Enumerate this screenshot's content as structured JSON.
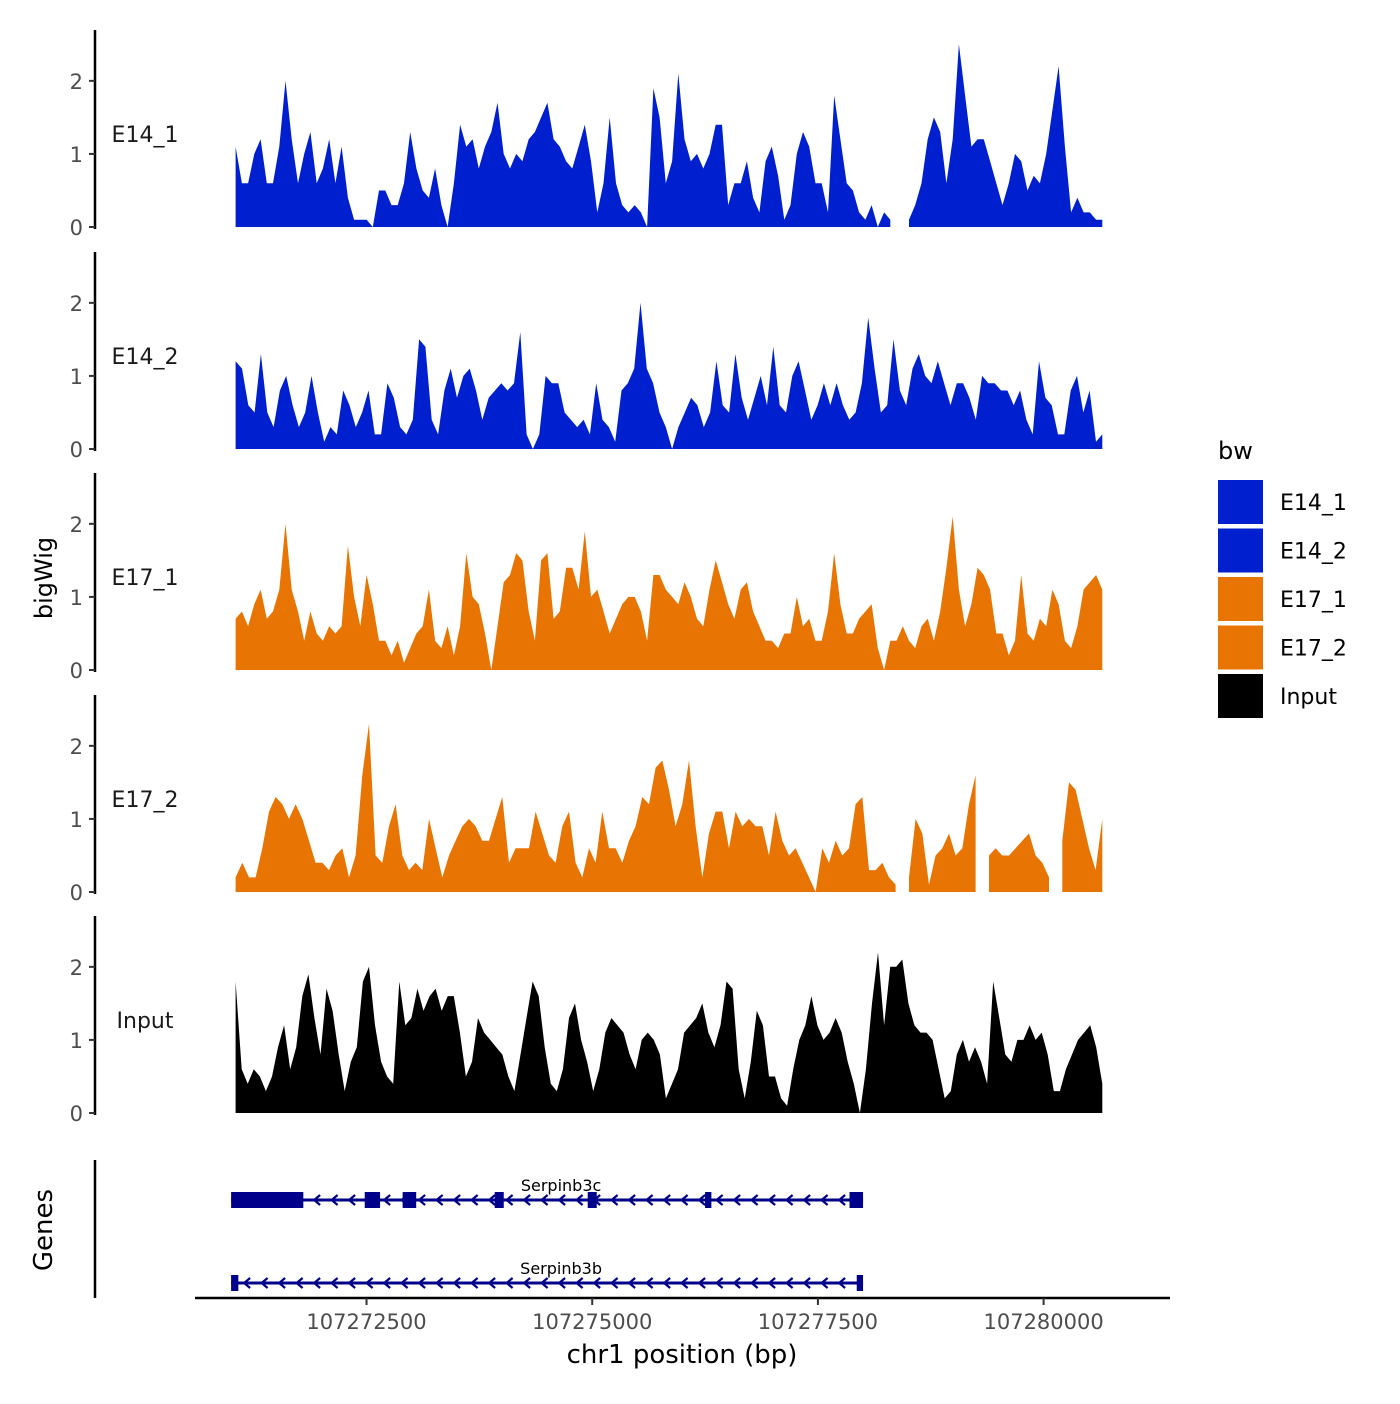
{
  "chart_data": {
    "type": "area",
    "ylabel": "bigWig",
    "xlabel": "chr1 position (bp)",
    "genes_label": "Genes",
    "x_range": [
      107271050,
      107280650
    ],
    "xlim": [
      107270600,
      107281400
    ],
    "x_ticks": [
      107272500,
      107275000,
      107277500,
      107280000
    ],
    "x_tick_labels": [
      "107272500",
      "107275000",
      "107277500",
      "107280000"
    ],
    "ylim": [
      0,
      2.6
    ],
    "y_ticks": [
      0,
      1,
      2
    ],
    "y_tick_labels": [
      "0",
      "1",
      "2"
    ],
    "legend": {
      "title": "bw",
      "entries": [
        {
          "label": "E14_1",
          "color": "#0020CF"
        },
        {
          "label": "E14_2",
          "color": "#0020CF"
        },
        {
          "label": "E17_1",
          "color": "#E87404"
        },
        {
          "label": "E17_2",
          "color": "#E87404"
        },
        {
          "label": "Input",
          "color": "#000000"
        }
      ]
    },
    "series": [
      {
        "name": "E14_1",
        "color": "#0020CF",
        "values": [
          1.1,
          0.6,
          0.6,
          1.0,
          1.2,
          0.6,
          0.6,
          1.1,
          2.0,
          1.2,
          0.6,
          1.0,
          1.3,
          0.6,
          0.8,
          1.2,
          0.6,
          1.1,
          0.4,
          0.1,
          0.1,
          0.1,
          0.0,
          0.5,
          0.5,
          0.3,
          0.3,
          0.6,
          1.3,
          0.8,
          0.5,
          0.4,
          0.8,
          0.3,
          0.0,
          0.6,
          1.4,
          1.1,
          1.2,
          0.8,
          1.1,
          1.3,
          1.7,
          1.0,
          0.8,
          1.0,
          0.9,
          1.2,
          1.3,
          1.5,
          1.7,
          1.2,
          1.1,
          0.9,
          0.8,
          1.1,
          1.4,
          0.9,
          0.2,
          0.6,
          1.5,
          0.6,
          0.3,
          0.2,
          0.3,
          0.2,
          0.0,
          1.9,
          1.5,
          0.6,
          0.9,
          2.1,
          1.2,
          0.9,
          1.0,
          0.8,
          1.0,
          1.4,
          1.4,
          0.3,
          0.6,
          0.6,
          0.9,
          0.4,
          0.2,
          0.9,
          1.1,
          0.7,
          0.1,
          0.3,
          1.0,
          1.3,
          1.1,
          0.6,
          0.6,
          0.2,
          1.8,
          1.2,
          0.6,
          0.5,
          0.2,
          0.1,
          0.3,
          0.0,
          0.2,
          0.1,
          null,
          null,
          0.1,
          0.3,
          0.6,
          1.2,
          1.5,
          1.3,
          0.6,
          1.2,
          2.5,
          1.8,
          1.1,
          1.2,
          1.2,
          0.9,
          0.6,
          0.3,
          0.6,
          1.0,
          0.9,
          0.5,
          0.7,
          0.6,
          1.0,
          1.6,
          2.2,
          1.1,
          0.2,
          0.4,
          0.2,
          0.2,
          0.1,
          0.1
        ]
      },
      {
        "name": "E14_2",
        "color": "#0020CF",
        "values": [
          1.2,
          1.1,
          0.6,
          0.5,
          1.3,
          0.5,
          0.3,
          0.8,
          1.0,
          0.6,
          0.3,
          0.5,
          1.0,
          0.5,
          0.1,
          0.3,
          0.2,
          0.8,
          0.6,
          0.3,
          0.5,
          0.8,
          0.2,
          0.2,
          0.9,
          0.7,
          0.3,
          0.2,
          0.4,
          1.5,
          1.4,
          0.4,
          0.2,
          0.8,
          1.1,
          0.7,
          1.0,
          1.1,
          0.8,
          0.4,
          0.7,
          0.8,
          0.9,
          0.8,
          0.9,
          1.6,
          0.2,
          0.0,
          0.2,
          1.0,
          0.9,
          0.9,
          0.5,
          0.4,
          0.3,
          0.4,
          0.2,
          0.9,
          0.4,
          0.3,
          0.1,
          0.8,
          0.9,
          1.1,
          2.0,
          1.1,
          0.9,
          0.5,
          0.3,
          0.0,
          0.3,
          0.5,
          0.7,
          0.6,
          0.3,
          0.5,
          1.2,
          0.6,
          0.5,
          1.3,
          0.7,
          0.4,
          0.7,
          1.0,
          0.6,
          1.4,
          0.6,
          0.5,
          1.0,
          1.2,
          0.8,
          0.4,
          0.6,
          0.9,
          0.6,
          0.9,
          0.6,
          0.4,
          0.5,
          0.9,
          1.8,
          1.1,
          0.5,
          0.6,
          1.5,
          0.8,
          0.6,
          1.1,
          1.3,
          1.0,
          0.9,
          1.2,
          0.9,
          0.6,
          0.9,
          0.9,
          0.7,
          0.4,
          1.0,
          0.9,
          0.9,
          0.8,
          0.8,
          0.6,
          0.8,
          0.4,
          0.2,
          1.2,
          0.7,
          0.6,
          0.2,
          0.2,
          0.8,
          1.0,
          0.5,
          0.8,
          0.1,
          0.2
        ]
      },
      {
        "name": "E17_1",
        "color": "#E87404",
        "values": [
          0.7,
          0.8,
          0.6,
          0.9,
          1.1,
          0.7,
          0.8,
          1.1,
          2.0,
          1.1,
          0.8,
          0.4,
          0.8,
          0.5,
          0.4,
          0.6,
          0.5,
          0.6,
          1.7,
          1.0,
          0.6,
          1.3,
          0.9,
          0.4,
          0.4,
          0.2,
          0.4,
          0.1,
          0.3,
          0.5,
          0.6,
          1.1,
          0.4,
          0.3,
          0.6,
          0.2,
          0.6,
          1.6,
          1.0,
          0.9,
          0.5,
          0.0,
          0.6,
          1.2,
          1.3,
          1.6,
          1.5,
          0.8,
          0.4,
          1.5,
          1.6,
          0.7,
          0.8,
          1.4,
          1.4,
          1.1,
          1.9,
          1.0,
          1.1,
          0.8,
          0.5,
          0.7,
          0.9,
          1.0,
          1.0,
          0.8,
          0.4,
          1.3,
          1.3,
          1.1,
          1.0,
          0.9,
          1.2,
          1.0,
          0.7,
          0.6,
          1.1,
          1.5,
          1.2,
          0.9,
          0.7,
          1.1,
          1.2,
          0.8,
          0.6,
          0.4,
          0.4,
          0.3,
          0.5,
          0.5,
          1.0,
          0.6,
          0.7,
          0.4,
          0.4,
          0.8,
          1.6,
          0.9,
          0.5,
          0.5,
          0.7,
          0.8,
          0.9,
          0.3,
          0.0,
          0.4,
          0.4,
          0.6,
          0.4,
          0.3,
          0.6,
          0.7,
          0.4,
          0.8,
          1.4,
          2.1,
          1.1,
          0.6,
          0.9,
          1.4,
          1.3,
          1.1,
          0.5,
          0.5,
          0.2,
          0.4,
          1.3,
          0.5,
          0.4,
          0.7,
          0.6,
          1.1,
          0.9,
          0.4,
          0.3,
          0.6,
          1.1,
          1.2,
          1.3,
          1.1
        ]
      },
      {
        "name": "E17_2",
        "color": "#E87404",
        "values": [
          0.2,
          0.4,
          0.2,
          0.2,
          0.6,
          1.1,
          1.3,
          1.2,
          1.0,
          1.2,
          1.0,
          0.7,
          0.4,
          0.4,
          0.3,
          0.5,
          0.6,
          0.2,
          0.5,
          1.6,
          2.3,
          0.5,
          0.4,
          0.9,
          1.2,
          0.5,
          0.3,
          0.4,
          0.3,
          1.0,
          0.6,
          0.2,
          0.5,
          0.7,
          0.9,
          1.0,
          0.9,
          0.7,
          0.7,
          1.0,
          1.3,
          0.4,
          0.6,
          0.6,
          0.6,
          1.1,
          0.8,
          0.5,
          0.4,
          0.9,
          1.1,
          0.4,
          0.2,
          0.6,
          0.4,
          1.1,
          0.6,
          0.6,
          0.4,
          0.7,
          0.9,
          1.3,
          1.2,
          1.7,
          1.8,
          1.4,
          0.9,
          1.2,
          1.8,
          0.9,
          0.2,
          0.8,
          1.1,
          1.1,
          0.6,
          1.1,
          0.9,
          1.0,
          0.9,
          0.9,
          0.5,
          1.1,
          0.7,
          0.5,
          0.6,
          0.4,
          0.2,
          0.0,
          0.6,
          0.4,
          0.7,
          0.5,
          0.6,
          1.2,
          1.3,
          0.3,
          0.3,
          0.4,
          0.2,
          0.1,
          null,
          0.2,
          1.0,
          0.8,
          0.1,
          0.5,
          0.6,
          0.8,
          0.5,
          0.6,
          1.2,
          1.6,
          null,
          0.5,
          0.6,
          0.5,
          0.5,
          0.6,
          0.7,
          0.8,
          0.5,
          0.4,
          0.2,
          null,
          0.7,
          1.5,
          1.4,
          1.0,
          0.6,
          0.3,
          1.0
        ]
      },
      {
        "name": "Input",
        "color": "#000000",
        "values": [
          1.8,
          0.6,
          0.4,
          0.6,
          0.5,
          0.3,
          0.5,
          0.9,
          1.2,
          0.6,
          0.9,
          1.6,
          1.9,
          1.3,
          0.8,
          1.7,
          1.4,
          0.8,
          0.3,
          0.7,
          0.9,
          1.8,
          2.0,
          1.2,
          0.7,
          0.5,
          0.4,
          1.8,
          1.2,
          1.3,
          1.7,
          1.4,
          1.6,
          1.7,
          1.4,
          1.6,
          1.6,
          1.1,
          0.5,
          0.7,
          1.3,
          1.1,
          1.0,
          0.9,
          0.8,
          0.5,
          0.3,
          0.8,
          1.3,
          1.8,
          1.6,
          0.9,
          0.4,
          0.3,
          0.6,
          1.3,
          1.5,
          1.0,
          0.7,
          0.3,
          0.6,
          1.1,
          1.3,
          1.2,
          1.1,
          0.8,
          0.6,
          1.0,
          1.1,
          1.0,
          0.8,
          0.2,
          0.4,
          0.6,
          1.1,
          1.2,
          1.3,
          1.5,
          1.1,
          0.9,
          1.2,
          1.8,
          1.7,
          0.6,
          0.2,
          0.7,
          1.4,
          1.2,
          0.5,
          0.5,
          0.2,
          0.1,
          0.6,
          1.0,
          1.2,
          1.6,
          1.2,
          1.0,
          1.1,
          1.3,
          1.1,
          0.7,
          0.4,
          0.0,
          0.6,
          1.5,
          2.2,
          1.2,
          2.0,
          2.0,
          2.1,
          1.5,
          1.2,
          1.1,
          1.1,
          1.0,
          0.6,
          0.2,
          0.3,
          0.8,
          1.0,
          0.7,
          0.9,
          0.7,
          0.4,
          1.8,
          1.3,
          0.8,
          0.7,
          1.0,
          1.0,
          1.2,
          1.0,
          1.1,
          0.8,
          0.3,
          0.3,
          0.6,
          0.8,
          1.0,
          1.1,
          1.2,
          0.9,
          0.4
        ]
      }
    ],
    "genes": [
      {
        "name": "Serpinb3c",
        "strand": "-",
        "start": 107271000,
        "end": 107278000,
        "exons": [
          [
            107271000,
            107271800
          ],
          [
            107272480,
            107272650
          ],
          [
            107272900,
            107273050
          ],
          [
            107273920,
            107274020
          ],
          [
            107274950,
            107275050
          ],
          [
            107276250,
            107276320
          ],
          [
            107277850,
            107278000
          ]
        ]
      },
      {
        "name": "Serpinb3b",
        "strand": "-",
        "start": 107271000,
        "end": 107278000,
        "exons": [
          [
            107271000,
            107271080
          ],
          [
            107277930,
            107278000
          ]
        ]
      }
    ]
  }
}
